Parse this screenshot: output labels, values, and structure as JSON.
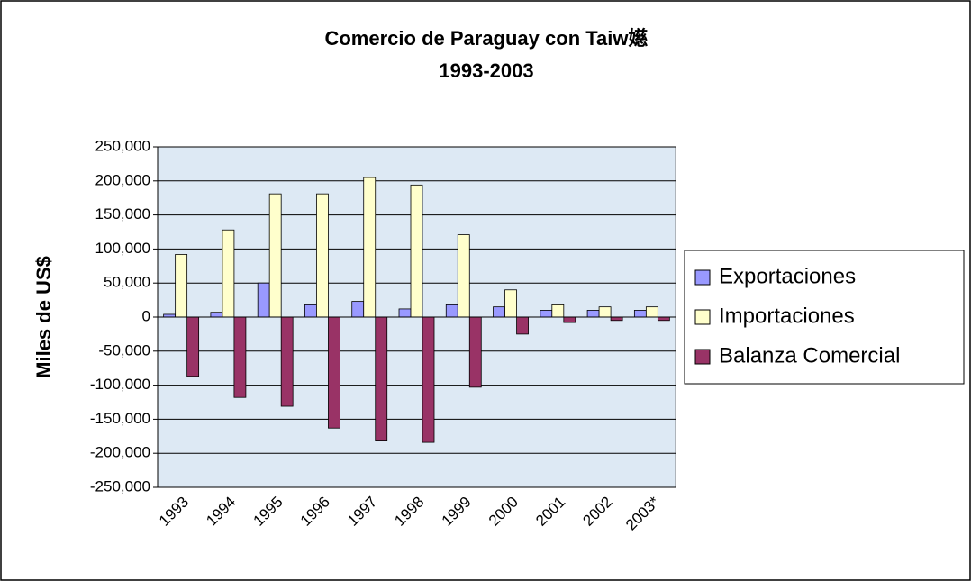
{
  "chart_data": {
    "type": "bar",
    "title": "Comercio de Paraguay con Taiw嬨",
    "subtitle": "1993-2003",
    "y_label": "Miles de US$",
    "categories": [
      "1993",
      "1994",
      "1995",
      "1996",
      "1997",
      "1998",
      "1999",
      "2000",
      "2001",
      "2002",
      "2003*"
    ],
    "series": [
      {
        "name": "Exportaciones",
        "color": "#9999ff",
        "values": [
          4000,
          7000,
          50000,
          18000,
          23000,
          12000,
          18000,
          15000,
          10000,
          10000,
          10000
        ]
      },
      {
        "name": "Importaciones",
        "color": "#ffffcc",
        "values": [
          92000,
          128000,
          181000,
          181000,
          205000,
          194000,
          121000,
          40000,
          18000,
          15000,
          15000
        ]
      },
      {
        "name": "Balanza Comercial",
        "color": "#993366",
        "values": [
          -87000,
          -118000,
          -131000,
          -163000,
          -182000,
          -184000,
          -103000,
          -25000,
          -8000,
          -5000,
          -5000
        ]
      }
    ],
    "ylim": [
      -250000,
      250000
    ],
    "yticks": [
      {
        "value": -250000,
        "label": "-250,000"
      },
      {
        "value": -200000,
        "label": "-200,000"
      },
      {
        "value": -150000,
        "label": "-150,000"
      },
      {
        "value": -100000,
        "label": "-100,000"
      },
      {
        "value": -50000,
        "label": "-50,000"
      },
      0,
      {
        "value": 50000,
        "label": "50,000"
      },
      {
        "value": 100000,
        "label": "100,000"
      },
      {
        "value": 150000,
        "label": "150,000"
      },
      {
        "value": 200000,
        "label": "200,000"
      },
      {
        "value": 250000,
        "label": "250,000"
      }
    ],
    "grid": true,
    "legend": "right"
  }
}
